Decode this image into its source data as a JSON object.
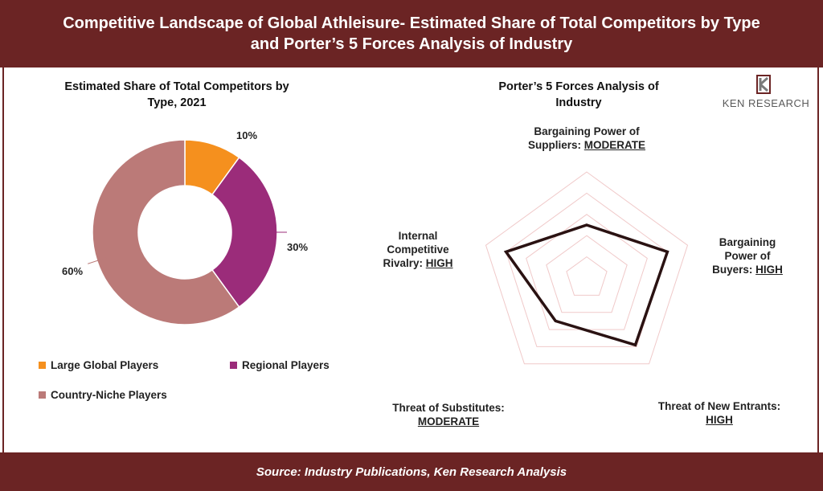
{
  "header": {
    "title_line1": "Competitive Landscape of Global Athleisure- Estimated Share of Total Competitors by Type",
    "title_line2": "and Porter’s 5 Forces Analysis of Industry"
  },
  "footer": {
    "source": "Source: Industry Publications, Ken Research Analysis"
  },
  "logo": {
    "text": "KEN RESEARCH",
    "mark": "K"
  },
  "colors": {
    "band": "#6b2424",
    "large_global": "#f5901e",
    "regional": "#9b2c7a",
    "country_niche": "#bb7a78",
    "radar_grid": "#f0c9c9",
    "radar_line": "#2a1212"
  },
  "chart_data": [
    {
      "type": "pie",
      "subtype": "donut",
      "title_line1": "Estimated Share of Total Competitors by",
      "title_line2": "Type, 2021",
      "categories": [
        "Large Global Players",
        "Regional Players",
        "Country-Niche Players"
      ],
      "values": [
        10,
        30,
        60
      ],
      "labels": [
        "10%",
        "30%",
        "60%"
      ],
      "legend": "bottom"
    },
    {
      "type": "radar",
      "title_line1": "Porter’s 5 Forces Analysis of",
      "title_line2": "Industry",
      "scale_max": 5,
      "grid_levels": 5,
      "axes": [
        {
          "name_lines": [
            "Bargaining Power of",
            "Suppliers:"
          ],
          "level": "MODERATE",
          "value": 2.5
        },
        {
          "name_lines": [
            "Bargaining",
            "Power of",
            "Buyers:"
          ],
          "level": "HIGH",
          "value": 4.0
        },
        {
          "name_lines": [
            "Threat of New Entrants:"
          ],
          "level": "HIGH",
          "value": 3.9
        },
        {
          "name_lines": [
            "Threat of Substitutes:"
          ],
          "level": "MODERATE",
          "value": 2.5
        },
        {
          "name_lines": [
            "Internal",
            "Competitive",
            "Rivalry:"
          ],
          "level": "HIGH",
          "value": 4.0
        }
      ]
    }
  ]
}
